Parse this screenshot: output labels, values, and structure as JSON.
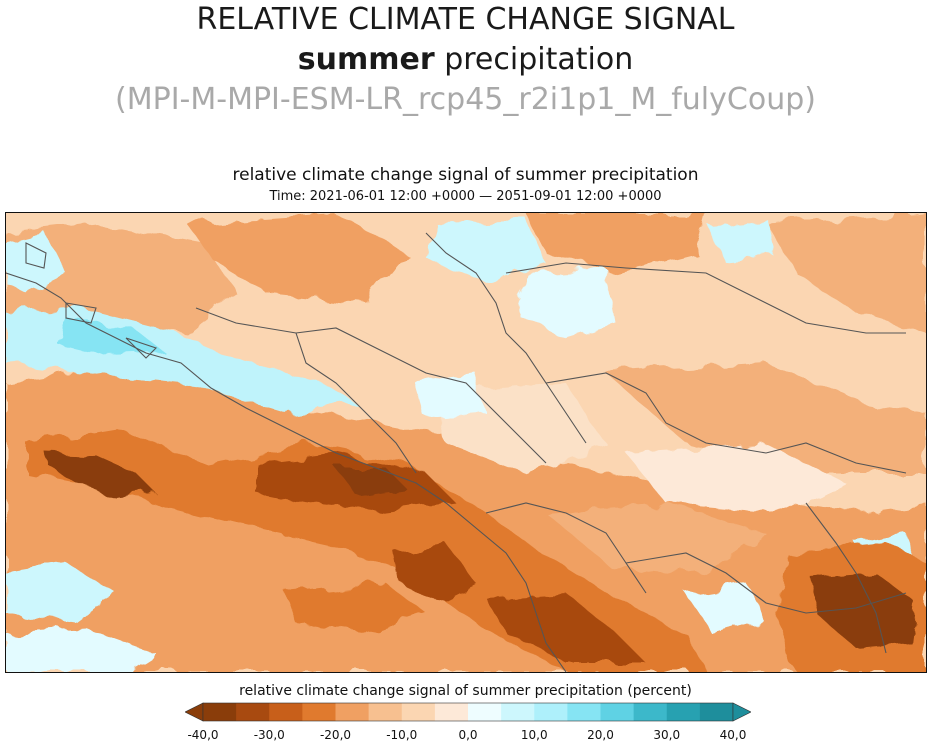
{
  "header": {
    "line1": "RELATIVE CLIMATE CHANGE SIGNAL",
    "line2_bold": "summer",
    "line2_rest": " precipitation",
    "line3": "(MPI-M-MPI-ESM-LR_rcp45_r2i1p1_M_fulyCoup)"
  },
  "map": {
    "title": "relative climate change signal of summer precipitation",
    "time": "Time: 2021-06-01 12:00 +0000 — 2051-09-01 12:00 +0000",
    "colors": {
      "bin_-40_-30": "#8a3d0a",
      "bin_-30_-20": "#c85f1a",
      "bin_-20_-10": "#f0a062",
      "bin_-10_0": "#fbe1c7",
      "bin_0_10": "#e3fbff",
      "bin_10_20": "#aef0fb",
      "bin_20_30": "#5fd2e4",
      "bin_30_40": "#1e8e9c",
      "border_line": "#555555"
    }
  },
  "legend": {
    "label": "relative climate change signal of summer precipitation (percent)",
    "ticks": [
      "-40,0",
      "-30,0",
      "-20,0",
      "-10,0",
      "0,0",
      "10,0",
      "20,0",
      "30,0",
      "40,0"
    ],
    "bins": [
      {
        "from": -40,
        "to": -35,
        "color": "#8a3d0a"
      },
      {
        "from": -35,
        "to": -30,
        "color": "#a84a10"
      },
      {
        "from": -30,
        "to": -25,
        "color": "#c85f1a"
      },
      {
        "from": -25,
        "to": -20,
        "color": "#e07a2e"
      },
      {
        "from": -20,
        "to": -15,
        "color": "#f0a062"
      },
      {
        "from": -15,
        "to": -10,
        "color": "#f7c090"
      },
      {
        "from": -10,
        "to": -5,
        "color": "#fbd6b2"
      },
      {
        "from": -5,
        "to": 0,
        "color": "#fde9d8"
      },
      {
        "from": 0,
        "to": 5,
        "color": "#eefdff"
      },
      {
        "from": 5,
        "to": 10,
        "color": "#cdf7fd"
      },
      {
        "from": 10,
        "to": 15,
        "color": "#aef0fb"
      },
      {
        "from": 15,
        "to": 20,
        "color": "#86e4f3"
      },
      {
        "from": 20,
        "to": 25,
        "color": "#5fd2e4"
      },
      {
        "from": 25,
        "to": 30,
        "color": "#3cb8ca"
      },
      {
        "from": 30,
        "to": 35,
        "color": "#27a1b1"
      },
      {
        "from": 35,
        "to": 40,
        "color": "#1e8e9c"
      }
    ],
    "arrow_low_color": "#8a3d0a",
    "arrow_high_color": "#1e8e9c"
  }
}
